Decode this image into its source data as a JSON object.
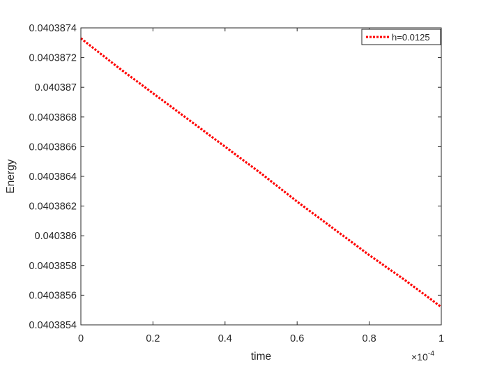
{
  "chart_data": {
    "type": "line",
    "xlabel": "time",
    "ylabel": "Energy",
    "x_exponent_label": {
      "base": "×10",
      "exponent": "-4"
    },
    "xlim": [
      0,
      0.0001
    ],
    "ylim": [
      0.0403854,
      0.0403874
    ],
    "x_ticks": [
      0,
      2e-05,
      4e-05,
      6e-05,
      8e-05,
      0.0001
    ],
    "x_tick_labels": [
      "0",
      "0.2",
      "0.4",
      "0.6",
      "0.8",
      "1"
    ],
    "y_ticks": [
      0.0403854,
      0.0403856,
      0.0403858,
      0.040386,
      0.0403862,
      0.0403864,
      0.0403866,
      0.0403868,
      0.040387,
      0.0403872,
      0.0403874
    ],
    "y_tick_labels": [
      "0.0403854",
      "0.0403856",
      "0.0403858",
      "0.040386",
      "0.0403862",
      "0.0403864",
      "0.0403866",
      "0.0403868",
      "0.040387",
      "0.0403872",
      "0.0403874"
    ],
    "grid": false,
    "legend_position": "top-right",
    "series": [
      {
        "name": "h=0.0125",
        "color": "#ff0000",
        "line_style": "dotted",
        "x": [
          0,
          1e-05,
          2e-05,
          3e-05,
          4e-05,
          5e-05,
          6e-05,
          7e-05,
          8e-05,
          9e-05,
          0.0001
        ],
        "y": [
          0.04038733,
          0.04038714,
          0.04038696,
          0.04038678,
          0.0403866,
          0.04038642,
          0.04038623,
          0.04038605,
          0.04038587,
          0.0403857,
          0.04038552
        ]
      }
    ]
  }
}
